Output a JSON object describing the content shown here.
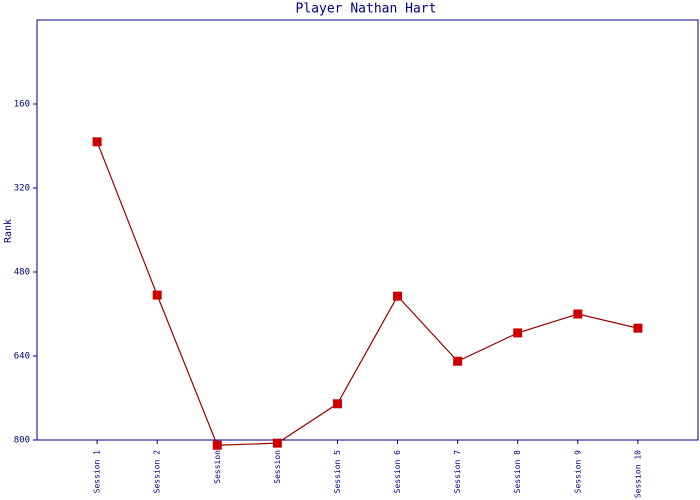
{
  "chart_data": {
    "type": "line",
    "title": "Player Nathan Hart",
    "y_label": "Rank",
    "categories": [
      "Session 1",
      "Session 2",
      "Session",
      "Session",
      "Session 5",
      "Session 6",
      "Session 7",
      "Session 8",
      "Session 9",
      "Session 10"
    ],
    "series": [
      {
        "name": "Rank",
        "color": "#990000",
        "marker_color": "#cc0000",
        "values": [
          232,
          524,
          810,
          806,
          731,
          526,
          650,
          596,
          560,
          587
        ]
      }
    ],
    "ylim": [
      800,
      0
    ],
    "yticks": [
      160,
      320,
      480,
      640,
      800
    ]
  }
}
